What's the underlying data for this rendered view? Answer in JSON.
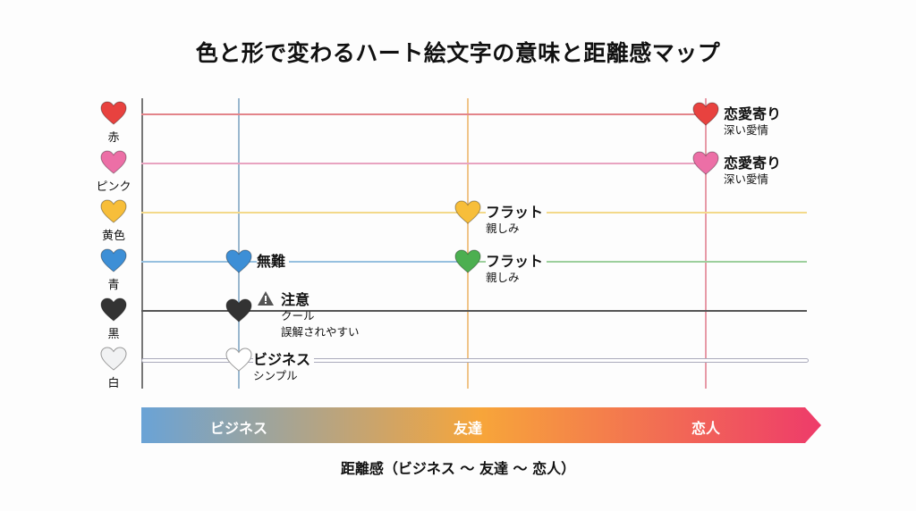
{
  "title": "色と形で変わるハート絵文字の意味と距離感マップ",
  "rows": [
    {
      "label": "赤",
      "color": "#e8423f"
    },
    {
      "label": "ピンク",
      "color": "#ec6fa6"
    },
    {
      "label": "黄色",
      "color": "#f7be3a"
    },
    {
      "label": "青",
      "color": "#3d8fd6"
    },
    {
      "label": "黒",
      "color": "#333333"
    },
    {
      "label": "白",
      "color": "#f1f2f3"
    }
  ],
  "points": [
    {
      "color": "#e8423f",
      "main": "恋愛寄り",
      "sub": "深い愛情"
    },
    {
      "color": "#ec6fa6",
      "main": "恋愛寄り",
      "sub": "深い愛情"
    },
    {
      "color": "#f7be3a",
      "main": "フラット",
      "sub": "親しみ"
    },
    {
      "color": "#4caf50",
      "main": "フラット",
      "sub": "親しみ"
    },
    {
      "color": "#3d8fd6",
      "main": "無難"
    },
    {
      "color": "#333333",
      "main": "注意",
      "sub": "クール",
      "sub2": "誤解されやすい",
      "warning_icon": "warning-icon"
    },
    {
      "color": "#ffffff",
      "main": "ビジネス",
      "sub": "シンプル"
    }
  ],
  "scale": {
    "labels": [
      "ビジネス",
      "友達",
      "恋人"
    ],
    "gradient": [
      "#6aa3d6",
      "#f7a53a",
      "#ee3b6a"
    ],
    "caption": "距離感（ビジネス 〜 友達 〜 恋人）"
  }
}
